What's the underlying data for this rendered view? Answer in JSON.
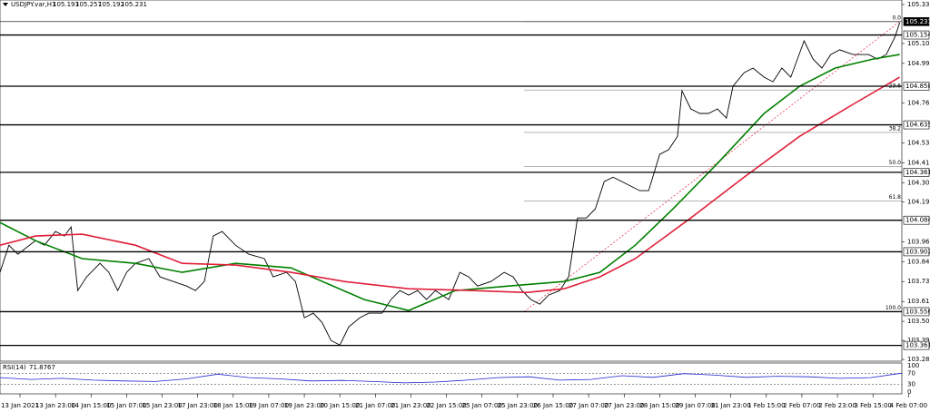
{
  "chart_data": {
    "type": "line",
    "title": "USDJPY.var,H1",
    "ohlc": [
      105.193,
      105.257,
      105.192,
      105.231
    ],
    "xlim": [
      0,
      406
    ],
    "ylim": [
      103.27,
      105.356
    ],
    "yticks": [
      {
        "value": 105.33,
        "label": "105.330"
      },
      {
        "value": 105.105,
        "label": "105.105"
      },
      {
        "value": 104.99,
        "label": "104.990"
      },
      {
        "value": 104.76,
        "label": "104.760"
      },
      {
        "value": 104.53,
        "label": "104.530"
      },
      {
        "value": 104.415,
        "label": "104.415"
      },
      {
        "value": 104.3,
        "label": "104.300"
      },
      {
        "value": 104.19,
        "label": "104.190"
      },
      {
        "value": 103.96,
        "label": "103.960"
      },
      {
        "value": 103.845,
        "label": "103.845"
      },
      {
        "value": 103.73,
        "label": "103.730"
      },
      {
        "value": 103.615,
        "label": "103.615"
      },
      {
        "value": 103.5,
        "label": "103.500"
      },
      {
        "value": 103.39,
        "label": "103.390"
      },
      {
        "value": 103.28,
        "label": "103.280"
      }
    ],
    "xticks": [
      {
        "value": 9,
        "label": "13 Jan 2021"
      },
      {
        "value": 25,
        "label": "13 Jan 23:00"
      },
      {
        "value": 41,
        "label": "14 Jan 15:00"
      },
      {
        "value": 57,
        "label": "15 Jan 07:00"
      },
      {
        "value": 73,
        "label": "15 Jan 23:00"
      },
      {
        "value": 89,
        "label": "17 Jan 23:00"
      },
      {
        "value": 105,
        "label": "18 Jan 15:00"
      },
      {
        "value": 121,
        "label": "19 Jan 07:00"
      },
      {
        "value": 137,
        "label": "19 Jan 23:00"
      },
      {
        "value": 153,
        "label": "20 Jan 15:00"
      },
      {
        "value": 169,
        "label": "21 Jan 07:00"
      },
      {
        "value": 185,
        "label": "21 Jan 23:00"
      },
      {
        "value": 201,
        "label": "22 Jan 15:00"
      },
      {
        "value": 217,
        "label": "25 Jan 07:00"
      },
      {
        "value": 233,
        "label": "25 Jan 23:00"
      },
      {
        "value": 249,
        "label": "26 Jan 15:00"
      },
      {
        "value": 265,
        "label": "27 Jan 07:00"
      },
      {
        "value": 281,
        "label": "27 Jan 23:00"
      },
      {
        "value": 297,
        "label": "28 Jan 15:00"
      },
      {
        "value": 313,
        "label": "29 Jan 07:00"
      },
      {
        "value": 329,
        "label": "31 Jan 23:00"
      },
      {
        "value": 345,
        "label": "1 Feb 15:00"
      },
      {
        "value": 361,
        "label": "2 Feb 07:00"
      },
      {
        "value": 377,
        "label": "2 Feb 23:00"
      },
      {
        "value": 393,
        "label": "3 Feb 15:00"
      },
      {
        "value": 409,
        "label": "4 Feb 07:00"
      }
    ],
    "series": [
      {
        "color": "#000000",
        "x": [
          0,
          4,
          8,
          16,
          20,
          25,
          29,
          32,
          35,
          39,
          45,
          49,
          53,
          57,
          61,
          67,
          72,
          78,
          84,
          88,
          92,
          96,
          100,
          106,
          112,
          119,
          123,
          129,
          133,
          137,
          141,
          145,
          149,
          153,
          157,
          162,
          166,
          172,
          176,
          180,
          184,
          188,
          192,
          196,
          202,
          207,
          211,
          215,
          221,
          227,
          231,
          235,
          239,
          243,
          247,
          252,
          256,
          260,
          264,
          268,
          272,
          276,
          280,
          284,
          288,
          292,
          297,
          301,
          305,
          307,
          311,
          315,
          319,
          323,
          327,
          330,
          335,
          339,
          344,
          348,
          352,
          356,
          362,
          366,
          370,
          374,
          378,
          384,
          391,
          395,
          399,
          403,
          405
        ],
        "values": [
          103.783,
          103.94,
          103.888,
          103.966,
          103.94,
          104.019,
          103.993,
          104.045,
          103.678,
          103.757,
          103.835,
          103.783,
          103.678,
          103.783,
          103.835,
          103.862,
          103.757,
          103.73,
          103.704,
          103.678,
          103.73,
          103.993,
          104.019,
          103.94,
          103.888,
          103.862,
          103.757,
          103.783,
          103.73,
          103.521,
          103.547,
          103.494,
          103.39,
          103.363,
          103.468,
          103.521,
          103.547,
          103.547,
          103.626,
          103.678,
          103.652,
          103.678,
          103.626,
          103.678,
          103.626,
          103.783,
          103.757,
          103.704,
          103.73,
          103.783,
          103.757,
          103.678,
          103.626,
          103.599,
          103.652,
          103.678,
          103.757,
          104.097,
          104.097,
          104.15,
          104.307,
          104.333,
          104.307,
          104.281,
          104.255,
          104.255,
          104.465,
          104.491,
          104.569,
          104.832,
          104.727,
          104.701,
          104.701,
          104.727,
          104.674,
          104.858,
          104.936,
          104.963,
          104.91,
          104.884,
          104.963,
          104.91,
          105.12,
          105.015,
          104.963,
          105.041,
          105.068,
          105.041,
          105.041,
          105.015,
          105.041,
          105.146,
          105.225
        ]
      },
      {
        "color": "#008000",
        "x": [
          0,
          16,
          37,
          61,
          82,
          106,
          131,
          164,
          184,
          205,
          229,
          254,
          270,
          286,
          303,
          323,
          344,
          360,
          376,
          393,
          405
        ],
        "values": [
          104.071,
          103.966,
          103.862,
          103.835,
          103.783,
          103.835,
          103.809,
          103.626,
          103.563,
          103.678,
          103.704,
          103.73,
          103.783,
          103.94,
          104.15,
          104.412,
          104.701,
          104.858,
          104.963,
          105.015,
          105.041
        ]
      },
      {
        "color": "#e0203a",
        "x": [
          0,
          16,
          37,
          61,
          82,
          106,
          131,
          155,
          184,
          213,
          237,
          254,
          270,
          286,
          311,
          335,
          360,
          384,
          405
        ],
        "values": [
          103.94,
          103.993,
          104.003,
          103.94,
          103.835,
          103.825,
          103.783,
          103.73,
          103.688,
          103.678,
          103.667,
          103.688,
          103.757,
          103.862,
          104.097,
          104.333,
          104.569,
          104.753,
          104.91
        ]
      }
    ],
    "levels": [
      105.231,
      105.154,
      104.858,
      104.635,
      104.361,
      104.084,
      103.902,
      103.556,
      103.361
    ],
    "fibo": [
      {
        "label": "0.0",
        "value": 105.231
      },
      {
        "label": "23.6",
        "value": 104.836
      },
      {
        "label": "38.2",
        "value": 104.591
      },
      {
        "label": "50.0",
        "value": 104.394
      },
      {
        "label": "61.8",
        "value": 104.196
      },
      {
        "label": "100.0",
        "value": 103.556
      }
    ],
    "trendline": {
      "color": "#e0203a",
      "x": [
        236,
        405
      ],
      "values": [
        103.556,
        105.231
      ]
    },
    "rsi": {
      "name": "RSI(14)",
      "last": 71.8767,
      "color": "#2020d0",
      "ylim": [
        0,
        100
      ],
      "yticks": [
        100,
        70,
        30,
        0
      ],
      "x": [
        0,
        14,
        28,
        42,
        56,
        70,
        84,
        98,
        112,
        126,
        140,
        154,
        168,
        182,
        196,
        210,
        224,
        238,
        252,
        266,
        280,
        294,
        308,
        322,
        336,
        350,
        364,
        378,
        392,
        406
      ],
      "values": [
        55,
        48,
        52,
        45,
        42,
        40,
        50,
        68,
        55,
        50,
        42,
        44,
        40,
        35,
        38,
        45,
        55,
        58,
        45,
        48,
        62,
        56,
        70,
        64,
        56,
        60,
        58,
        52,
        55,
        71.8767
      ]
    }
  }
}
